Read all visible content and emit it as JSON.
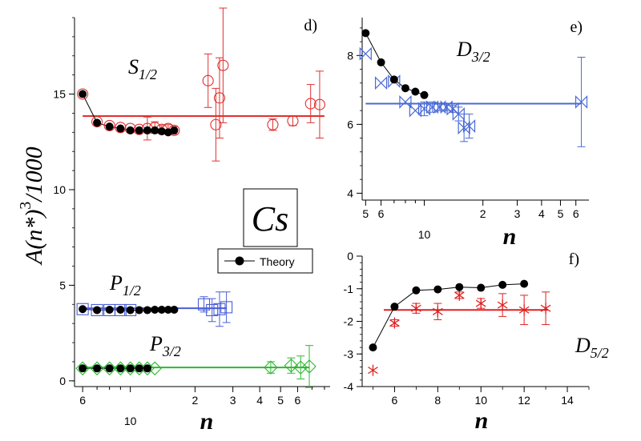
{
  "chart_data": [
    {
      "id": "d",
      "type": "scatter",
      "panel_label": "d)",
      "xlabel": "n",
      "ylabel": "A(n*)",
      "ylabel_sup": "3",
      "ylabel_tail": "/1000",
      "x_scale": "log",
      "xlim": [
        5.5,
        85
      ],
      "ylim": [
        -0.3,
        19
      ],
      "x_ticks": [
        6,
        7,
        8,
        9,
        10,
        20,
        30,
        40,
        50,
        60,
        70,
        80
      ],
      "x_tick_labels": [
        {
          "x": 6,
          "text": "6"
        },
        {
          "x": 10,
          "text": "10"
        },
        {
          "x": 20,
          "text": "2"
        },
        {
          "x": 30,
          "text": "3"
        },
        {
          "x": 40,
          "text": "4"
        },
        {
          "x": 50,
          "text": "5"
        },
        {
          "x": 60,
          "text": "6"
        }
      ],
      "y_ticks": [
        0,
        5,
        10,
        15
      ],
      "y_tick_labels": [
        "0",
        "5",
        "10",
        "15"
      ],
      "element_label": "Cs",
      "legend": {
        "label": "Theory",
        "placement": "right-middle"
      },
      "series": [
        {
          "name": "S1/2",
          "label_main": "S",
          "label_sub": "1/2",
          "color": "#e03030",
          "marker": "circle",
          "fit": 13.85,
          "exp": [
            [
              6,
              15.0,
              0
            ],
            [
              7,
              13.55,
              0
            ],
            [
              8,
              13.35,
              0
            ],
            [
              9,
              13.25,
              0
            ],
            [
              10,
              13.2,
              0
            ],
            [
              11,
              13.15,
              0
            ],
            [
              12,
              13.2,
              0.6
            ],
            [
              13,
              13.25,
              0.3
            ],
            [
              14,
              13.15,
              0.2
            ],
            [
              15,
              13.2,
              0.2
            ],
            [
              16,
              13.1,
              0.2
            ],
            [
              23,
              15.7,
              1.4
            ],
            [
              25,
              13.4,
              1.9
            ],
            [
              26,
              14.8,
              2.1
            ],
            [
              27,
              16.5,
              3.0
            ],
            [
              46,
              13.4,
              0.3
            ],
            [
              57,
              13.6,
              0.25
            ],
            [
              69,
              14.5,
              1.0
            ],
            [
              76,
              14.45,
              1.75
            ]
          ],
          "theory": [
            [
              6,
              15.0
            ],
            [
              7,
              13.5
            ],
            [
              8,
              13.3
            ],
            [
              9,
              13.2
            ],
            [
              10,
              13.1
            ],
            [
              11,
              13.1
            ],
            [
              12,
              13.1
            ],
            [
              13,
              13.1
            ],
            [
              14,
              13.05
            ],
            [
              15,
              13.0
            ],
            [
              16,
              13.1
            ]
          ]
        },
        {
          "name": "P1/2",
          "label_main": "P",
          "label_sub": "1/2",
          "color": "#4a5fd6",
          "marker": "square",
          "fit": 3.8,
          "exp": [
            [
              6,
              3.75,
              0
            ],
            [
              7,
              3.7,
              0
            ],
            [
              8,
              3.7,
              0
            ],
            [
              9,
              3.7,
              0
            ],
            [
              10,
              3.7,
              0
            ],
            [
              22,
              4.0,
              0.4
            ],
            [
              24,
              3.7,
              0.6
            ],
            [
              26,
              3.75,
              0.9
            ],
            [
              28,
              3.85,
              0.8
            ]
          ],
          "theory": [
            [
              6,
              3.75
            ],
            [
              7,
              3.7
            ],
            [
              8,
              3.72
            ],
            [
              9,
              3.72
            ],
            [
              10,
              3.7
            ],
            [
              11,
              3.7
            ],
            [
              12,
              3.7
            ],
            [
              13,
              3.72
            ],
            [
              14,
              3.72
            ],
            [
              15,
              3.72
            ],
            [
              16,
              3.72
            ]
          ]
        },
        {
          "name": "P3/2",
          "label_main": "P",
          "label_sub": "3/2",
          "color": "#2db830",
          "marker": "diamond",
          "fit": 0.7,
          "exp": [
            [
              6,
              0.65,
              0
            ],
            [
              7,
              0.65,
              0
            ],
            [
              8,
              0.65,
              0
            ],
            [
              9,
              0.65,
              0
            ],
            [
              10,
              0.65,
              0
            ],
            [
              11,
              0.65,
              0
            ],
            [
              12,
              0.65,
              0
            ],
            [
              13,
              0.65,
              0
            ],
            [
              45,
              0.7,
              0.3
            ],
            [
              56,
              0.8,
              0.4
            ],
            [
              62,
              0.7,
              0.6
            ],
            [
              68,
              0.75,
              1.1
            ]
          ],
          "theory": [
            [
              6,
              0.65
            ],
            [
              7,
              0.65
            ],
            [
              8,
              0.65
            ],
            [
              9,
              0.65
            ],
            [
              10,
              0.65
            ],
            [
              11,
              0.65
            ],
            [
              12,
              0.65
            ]
          ]
        }
      ]
    },
    {
      "id": "e",
      "type": "scatter",
      "panel_label": "e)",
      "xlabel": "n",
      "x_scale": "log",
      "xlim": [
        4.8,
        70
      ],
      "ylim": [
        3.8,
        9.1
      ],
      "x_ticks": [
        5,
        6,
        7,
        8,
        9,
        10,
        20,
        30,
        40,
        50,
        60
      ],
      "x_tick_labels": [
        {
          "x": 5,
          "text": "5"
        },
        {
          "x": 6,
          "text": "6"
        },
        {
          "x": 10,
          "text": "10"
        },
        {
          "x": 20,
          "text": "2"
        },
        {
          "x": 30,
          "text": "3"
        },
        {
          "x": 40,
          "text": "4"
        },
        {
          "x": 50,
          "text": "5"
        },
        {
          "x": 60,
          "text": "6"
        }
      ],
      "y_ticks": [
        4,
        6,
        8
      ],
      "y_tick_labels": [
        "4",
        "6",
        "8"
      ],
      "series": [
        {
          "name": "D3/2",
          "label_main": "D",
          "label_sub": "3/2",
          "color": "#4a6ad6",
          "marker": "bowtie",
          "fit": 6.6,
          "exp": [
            [
              5,
              8.05,
              0
            ],
            [
              6,
              7.2,
              0
            ],
            [
              7,
              7.25,
              0
            ],
            [
              8,
              6.65,
              0
            ],
            [
              9,
              6.4,
              0
            ],
            [
              10,
              6.45,
              0.2
            ],
            [
              11,
              6.5,
              0.15
            ],
            [
              12,
              6.5,
              0.1
            ],
            [
              13,
              6.5,
              0.1
            ],
            [
              14,
              6.45,
              0.1
            ],
            [
              15,
              6.3,
              0.2
            ],
            [
              16,
              5.9,
              0.4
            ],
            [
              17,
              5.95,
              0.35
            ],
            [
              64,
              6.65,
              1.3
            ]
          ],
          "theory": [
            [
              5,
              8.65
            ],
            [
              6,
              7.8
            ],
            [
              7,
              7.3
            ],
            [
              8,
              7.05
            ],
            [
              9,
              6.95
            ],
            [
              10,
              6.85
            ]
          ]
        }
      ]
    },
    {
      "id": "f",
      "type": "scatter",
      "panel_label": "f)",
      "xlabel": "n",
      "x_scale": "linear",
      "xlim": [
        4.5,
        15
      ],
      "ylim": [
        -4,
        0
      ],
      "x_ticks": [
        6,
        8,
        10,
        12,
        14
      ],
      "x_tick_labels": [
        {
          "x": 6,
          "text": "6"
        },
        {
          "x": 8,
          "text": "8"
        },
        {
          "x": 10,
          "text": "10"
        },
        {
          "x": 12,
          "text": "12"
        },
        {
          "x": 14,
          "text": "14"
        }
      ],
      "y_ticks": [
        0,
        -1,
        -2,
        -3,
        -4
      ],
      "y_tick_labels": [
        "0",
        "-1",
        "-2",
        "-3",
        "-4"
      ],
      "series": [
        {
          "name": "D5/2",
          "label_main": "D",
          "label_sub": "5/2",
          "color": "#e02020",
          "marker": "asterisk",
          "fit": -1.65,
          "exp": [
            [
              5,
              -3.5,
              0
            ],
            [
              6,
              -2.05,
              0.1
            ],
            [
              7,
              -1.6,
              0.15
            ],
            [
              8,
              -1.7,
              0.25
            ],
            [
              9,
              -1.2,
              0.1
            ],
            [
              10,
              -1.45,
              0.15
            ],
            [
              11,
              -1.5,
              0.35
            ],
            [
              12,
              -1.65,
              0.45
            ],
            [
              13,
              -1.6,
              0.5
            ]
          ],
          "theory": [
            [
              5,
              -2.8
            ],
            [
              6,
              -1.55
            ],
            [
              7,
              -1.05
            ],
            [
              8,
              -1.02
            ],
            [
              9,
              -0.95
            ],
            [
              10,
              -0.97
            ],
            [
              11,
              -0.88
            ],
            [
              12,
              -0.85
            ]
          ]
        }
      ]
    }
  ]
}
